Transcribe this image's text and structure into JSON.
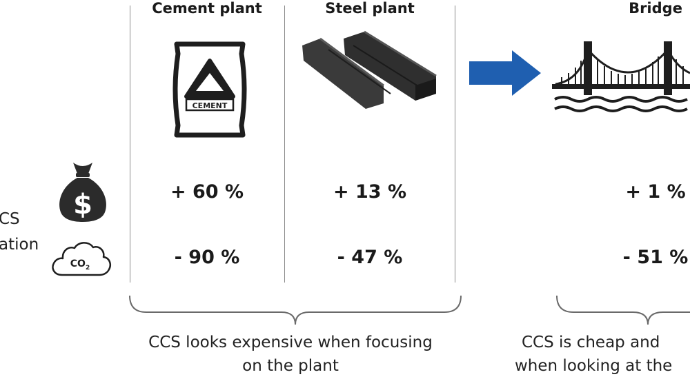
{
  "left_label": {
    "line1": "CS",
    "line2": "ation"
  },
  "columns": [
    {
      "header": "Cement plant",
      "cost": "+ 60 %",
      "emissions": "- 90 %"
    },
    {
      "header": "Steel plant",
      "cost": "+ 13 %",
      "emissions": "- 47 %"
    },
    {
      "header": "Bridge",
      "cost": "+ 1 %",
      "emissions": "- 51 %"
    }
  ],
  "icons": {
    "cost": "money-bag-dollar-icon",
    "emissions": "co2-cloud-icon",
    "cement": "cement-bag-icon",
    "steel": "steel-beams-icon",
    "bridge": "suspension-bridge-icon",
    "arrow": "right-arrow-icon"
  },
  "cement_bag_text": "CEMENT",
  "co2_text": {
    "main": "CO",
    "sub": "2"
  },
  "dollar_text": "$",
  "captions": {
    "plant": {
      "line1": "CCS looks expensive when focusing",
      "line2": "on the plant"
    },
    "bridge": {
      "line1": "CCS is cheap and",
      "line2": "when looking at the"
    }
  },
  "colors": {
    "arrow": "#1f5fb0",
    "icon": "#2b2b2b",
    "divider": "#8a8a8a"
  }
}
